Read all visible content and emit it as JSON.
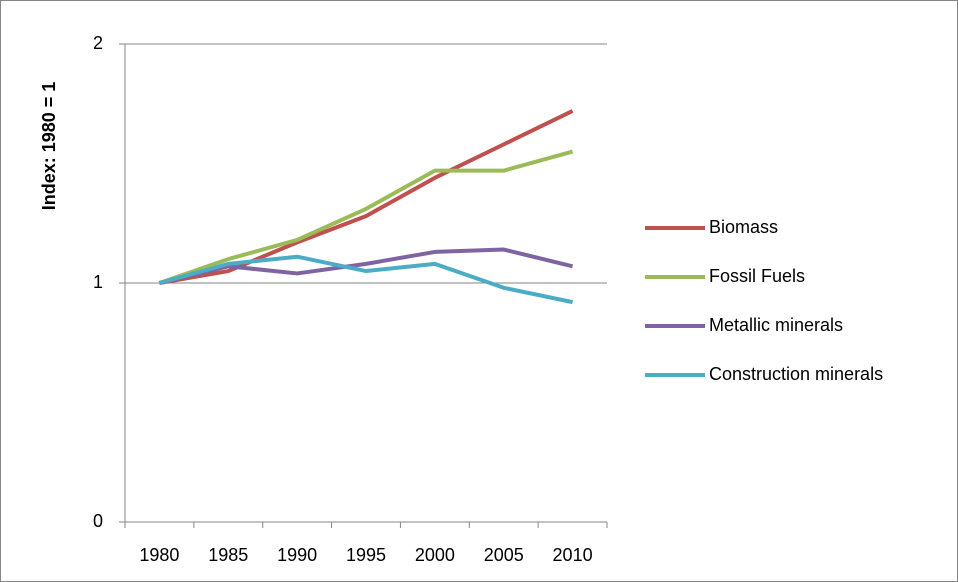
{
  "chart_data": {
    "type": "line",
    "y_label": "Index: 1980 = 1",
    "categories": [
      "1980",
      "1985",
      "1990",
      "1995",
      "2000",
      "2005",
      "2010"
    ],
    "series": [
      {
        "name": "Biomass",
        "color": "#c0504d",
        "values": [
          1.0,
          1.05,
          1.17,
          1.28,
          1.44,
          1.58,
          1.72
        ]
      },
      {
        "name": "Fossil Fuels",
        "color": "#9bbb59",
        "values": [
          1.0,
          1.1,
          1.18,
          1.31,
          1.47,
          1.47,
          1.55
        ]
      },
      {
        "name": "Metallic minerals",
        "color": "#8064a2",
        "values": [
          1.0,
          1.07,
          1.04,
          1.08,
          1.13,
          1.14,
          1.07
        ]
      },
      {
        "name": "Construction minerals",
        "color": "#4bacc6",
        "values": [
          1.0,
          1.08,
          1.11,
          1.05,
          1.08,
          0.98,
          0.92
        ]
      }
    ],
    "ylim": [
      0,
      2
    ],
    "yticks": [
      0,
      1,
      2
    ],
    "grid": true,
    "legend": "right"
  }
}
